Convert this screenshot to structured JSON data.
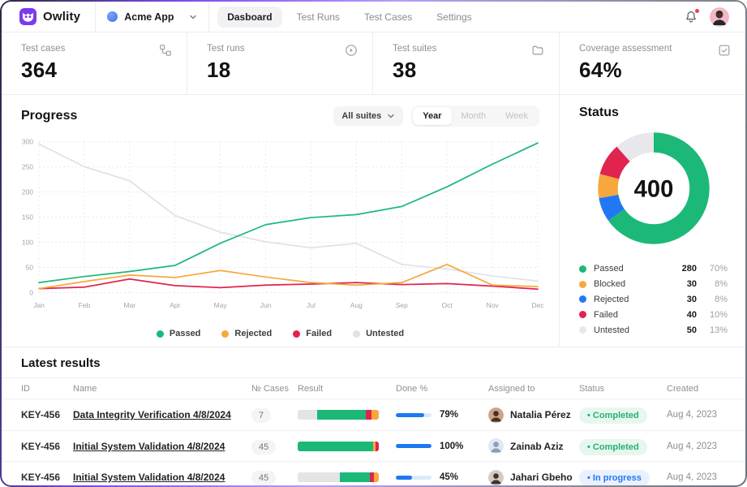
{
  "app": {
    "name": "Owlity",
    "workspace": "Acme App"
  },
  "nav": {
    "tabs": [
      {
        "label": "Dasboard",
        "active": true
      },
      {
        "label": "Test Runs",
        "active": false
      },
      {
        "label": "Test Cases",
        "active": false
      },
      {
        "label": "Settings",
        "active": false
      }
    ]
  },
  "stats": [
    {
      "label": "Test cases",
      "value": "364",
      "icon": "workflow-icon"
    },
    {
      "label": "Test runs",
      "value": "18",
      "icon": "play-circle-icon"
    },
    {
      "label": "Test suites",
      "value": "38",
      "icon": "folder-icon"
    },
    {
      "label": "Coverage assessment",
      "value": "64%",
      "icon": "checkbox-icon"
    }
  ],
  "progress": {
    "title": "Progress",
    "filter_label": "All suites",
    "range_options": [
      "Year",
      "Month",
      "Week"
    ],
    "selected_range": "Year"
  },
  "colors": {
    "passed": "#1cb878",
    "blocked": "#f6a83c",
    "failed": "#e0244e",
    "rejected": "#2277f5",
    "untested": "#e4e4e7",
    "done_fill": "#1f78f0",
    "brand_purple": "#7c3aed"
  },
  "chart_data": [
    {
      "type": "line",
      "title": "Progress",
      "x": [
        "Jan",
        "Feb",
        "Mar",
        "Apr",
        "May",
        "Jun",
        "Jul",
        "Aug",
        "Sep",
        "Oct",
        "Nov",
        "Dec"
      ],
      "ylim": [
        0,
        300
      ],
      "yticks": [
        0,
        50,
        100,
        150,
        200,
        250,
        300
      ],
      "grid": "dashed",
      "legend_position": "bottom",
      "series": [
        {
          "name": "Passed",
          "color": "#1cb878",
          "values": [
            20,
            32,
            42,
            54,
            98,
            135,
            149,
            155,
            171,
            210,
            255,
            297
          ]
        },
        {
          "name": "Rejected",
          "color": "#f6a83c",
          "values": [
            8,
            22,
            35,
            30,
            44,
            31,
            20,
            15,
            20,
            56,
            15,
            12
          ]
        },
        {
          "name": "Failed",
          "color": "#e0244e",
          "values": [
            8,
            11,
            27,
            14,
            10,
            15,
            17,
            20,
            16,
            18,
            13,
            7
          ]
        },
        {
          "name": "Untested",
          "color": "#e2e2e6",
          "values": [
            295,
            250,
            222,
            153,
            120,
            101,
            89,
            98,
            56,
            47,
            33,
            23
          ]
        }
      ]
    },
    {
      "type": "pie",
      "title": "Status",
      "donut": true,
      "total_label": "400",
      "segments": [
        {
          "label": "Passed",
          "value": 280,
          "color": "#1cb878"
        },
        {
          "label": "Rejected",
          "value": 30,
          "color": "#2277f5"
        },
        {
          "label": "Blocked",
          "value": 30,
          "color": "#f6a83c"
        },
        {
          "label": "Failed",
          "value": 40,
          "color": "#e0244e"
        },
        {
          "label": "Untested",
          "value": 50,
          "color": "#e8e8ec"
        }
      ]
    }
  ],
  "status": {
    "title": "Status",
    "total": "400",
    "legend": [
      {
        "label": "Passed",
        "value": "280",
        "percent": "70%",
        "color": "#1cb878"
      },
      {
        "label": "Blocked",
        "value": "30",
        "percent": "8%",
        "color": "#f6a83c"
      },
      {
        "label": "Rejected",
        "value": "30",
        "percent": "8%",
        "color": "#2277f5"
      },
      {
        "label": "Failed",
        "value": "40",
        "percent": "10%",
        "color": "#e0244e"
      },
      {
        "label": "Untested",
        "value": "50",
        "percent": "13%",
        "color": "#e8e8ec"
      }
    ]
  },
  "latest_results": {
    "title": "Latest results",
    "columns": [
      "ID",
      "Name",
      "№ Cases",
      "Result",
      "Done %",
      "Assigned to",
      "Status",
      "Created"
    ],
    "rows": [
      {
        "id": "KEY-456",
        "name": "Data Integrity Verification 4/8/2024",
        "cases": "7",
        "result_segments": [
          {
            "key": "untested",
            "pct": 24
          },
          {
            "key": "passed",
            "pct": 60
          },
          {
            "key": "failed",
            "pct": 7
          },
          {
            "key": "blocked",
            "pct": 9
          }
        ],
        "done_pct": 79,
        "done_label": "79%",
        "assignee": "Natalia Pérez",
        "avatar_bg": "#caa58b",
        "avatar_fg": "#4a2f23",
        "status": "Completed",
        "status_type": "completed",
        "created": "Aug 4, 2023"
      },
      {
        "id": "KEY-456",
        "name": "Initial System Validation 4/8/2024",
        "cases": "45",
        "result_segments": [
          {
            "key": "passed",
            "pct": 93
          },
          {
            "key": "blocked",
            "pct": 3
          },
          {
            "key": "failed",
            "pct": 4
          }
        ],
        "done_pct": 100,
        "done_label": "100%",
        "assignee": "Zainab Aziz",
        "avatar_bg": "#dfe7f2",
        "avatar_fg": "#8d9cb8",
        "status": "Completed",
        "status_type": "completed",
        "created": "Aug 4, 2023"
      },
      {
        "id": "KEY-456",
        "name": "Initial System Validation 4/8/2024",
        "cases": "45",
        "result_segments": [
          {
            "key": "untested",
            "pct": 52
          },
          {
            "key": "passed",
            "pct": 37
          },
          {
            "key": "failed",
            "pct": 5
          },
          {
            "key": "blocked",
            "pct": 6
          }
        ],
        "done_pct": 45,
        "done_label": "45%",
        "assignee": "Jahari Gbeho",
        "avatar_bg": "#d8c9c0",
        "avatar_fg": "#3c3430",
        "status": "In progress",
        "status_type": "in-progress",
        "created": "Aug 4, 2023"
      }
    ]
  }
}
